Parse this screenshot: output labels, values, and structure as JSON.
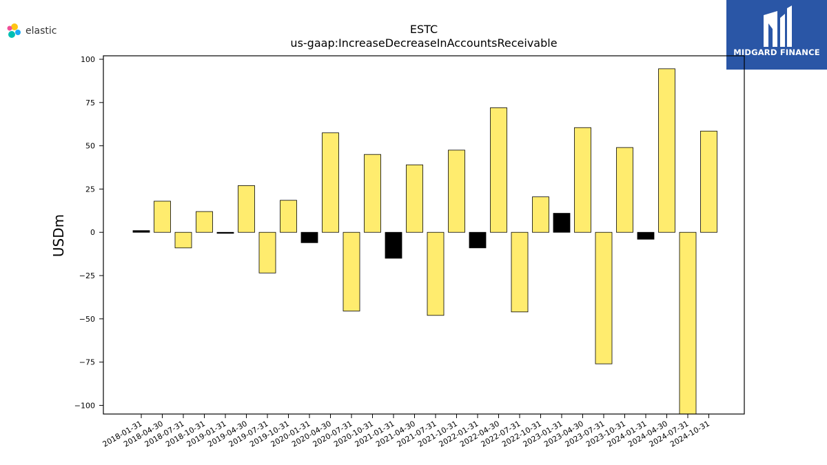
{
  "brand_left": "elastic",
  "brand_right": "MIDGARD FINANCE",
  "colors": {
    "positive": "#ffec6e",
    "highlight": "#000000",
    "edge": "#000000",
    "brand_blue": "#2a56a6"
  },
  "chart_data": {
    "type": "bar",
    "title": "ESTC",
    "subtitle": "us-gaap:IncreaseDecreaseInAccountsReceivable",
    "ylabel": "USDm",
    "xlabel": "",
    "ylim": [
      -105,
      102
    ],
    "yticks": [
      100,
      75,
      50,
      25,
      0,
      -25,
      -50,
      -75,
      -100
    ],
    "ytick_labels": [
      "100",
      "75",
      "50",
      "25",
      "0",
      "−25",
      "−50",
      "−75",
      "−100"
    ],
    "grid": false,
    "categories": [
      "2018-01-31",
      "2018-04-30",
      "2018-07-31",
      "2018-10-31",
      "2019-01-31",
      "2019-04-30",
      "2019-07-31",
      "2019-10-31",
      "2020-01-31",
      "2020-04-30",
      "2020-07-31",
      "2020-10-31",
      "2021-01-31",
      "2021-04-30",
      "2021-07-31",
      "2021-10-31",
      "2022-01-31",
      "2022-04-30",
      "2022-07-31",
      "2022-10-31",
      "2023-01-31",
      "2023-04-30",
      "2023-07-31",
      "2023-10-31",
      "2024-01-31",
      "2024-04-30",
      "2024-07-31",
      "2024-10-31"
    ],
    "values": [
      1,
      18,
      -9,
      12,
      -0.5,
      27,
      -23.5,
      18.5,
      -6,
      57.5,
      -45.5,
      45,
      -15,
      39,
      -48,
      47.5,
      -9,
      72,
      -46,
      20.5,
      11,
      60.5,
      -76,
      49,
      -4,
      94.5,
      -105,
      58.5
    ],
    "bar_colors": [
      "#000000",
      "#ffec6e",
      "#ffec6e",
      "#ffec6e",
      "#000000",
      "#ffec6e",
      "#ffec6e",
      "#ffec6e",
      "#000000",
      "#ffec6e",
      "#ffec6e",
      "#ffec6e",
      "#000000",
      "#ffec6e",
      "#ffec6e",
      "#ffec6e",
      "#000000",
      "#ffec6e",
      "#ffec6e",
      "#ffec6e",
      "#000000",
      "#ffec6e",
      "#ffec6e",
      "#ffec6e",
      "#000000",
      "#ffec6e",
      "#ffec6e",
      "#ffec6e"
    ]
  }
}
